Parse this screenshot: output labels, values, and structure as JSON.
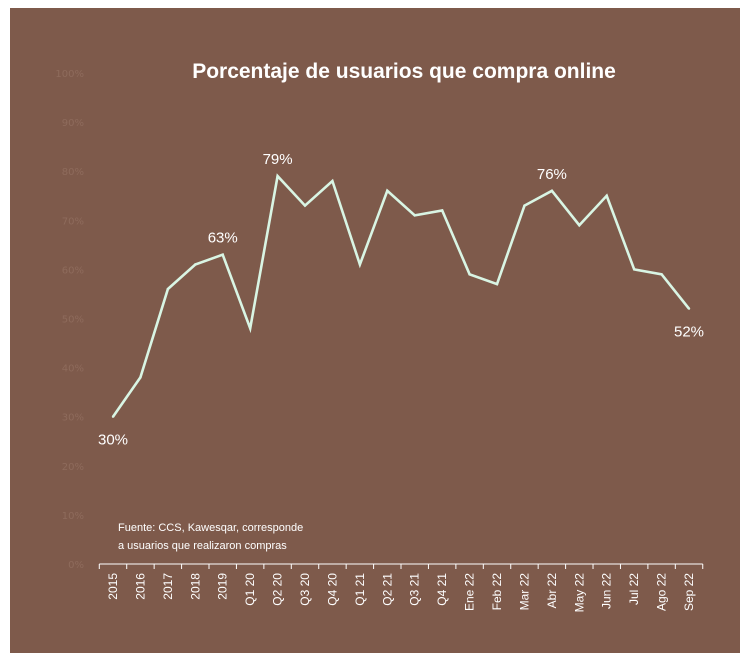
{
  "chart_data": {
    "type": "line",
    "title": "Porcentaje de usuarios que compra online",
    "xlabel": "",
    "ylabel": "",
    "ylim": [
      0,
      100
    ],
    "y_ticks": [
      "0%",
      "10%",
      "20%",
      "30%",
      "40%",
      "50%",
      "60%",
      "70%",
      "80%",
      "90%",
      "100%"
    ],
    "categories": [
      "2015",
      "2016",
      "2017",
      "2018",
      "2019",
      "Q1 20",
      "Q2 20",
      "Q3 20",
      "Q4 20",
      "Q1 21",
      "Q2 21",
      "Q3 21",
      "Q4 21",
      "Ene 22",
      "Feb 22",
      "Mar 22",
      "Abr 22",
      "May 22",
      "Jun 22",
      "Jul 22",
      "Ago 22",
      "Sep 22"
    ],
    "series": [
      {
        "values": [
          30,
          38,
          56,
          61,
          63,
          48,
          79,
          73,
          78,
          61,
          76,
          71,
          72,
          59,
          57,
          73,
          76,
          69,
          75,
          60,
          59,
          52
        ]
      }
    ],
    "data_labels": [
      {
        "index": 0,
        "text": "30%",
        "pos": "below"
      },
      {
        "index": 4,
        "text": "63%",
        "pos": "above"
      },
      {
        "index": 6,
        "text": "79%",
        "pos": "above"
      },
      {
        "index": 16,
        "text": "76%",
        "pos": "above"
      },
      {
        "index": 21,
        "text": "52%",
        "pos": "below"
      }
    ],
    "grid": false,
    "legend": "none",
    "line_color": "#d9f5e4",
    "background_color": "#7e5a4b",
    "source_note": [
      "Fuente: CCS, Kawesqar, corresponde",
      "a usuarios que realizaron compras"
    ]
  }
}
